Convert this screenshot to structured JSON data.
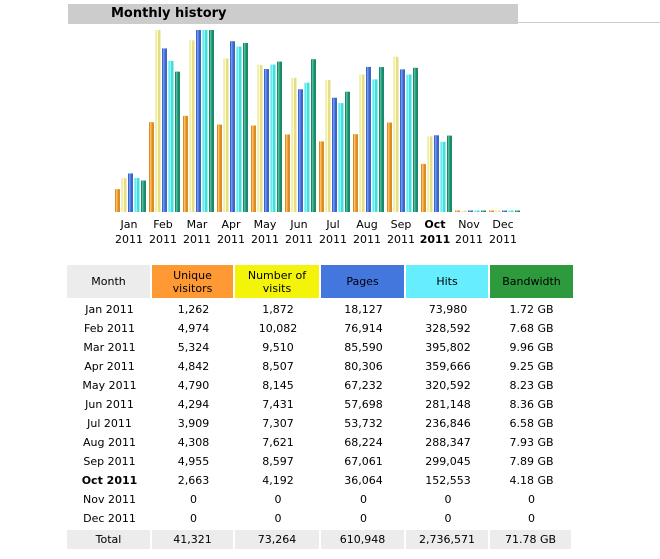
{
  "title": "Monthly history",
  "colors": {
    "unique": "#d98c28",
    "visits": "#e6dc8c",
    "pages": "#3b66c8",
    "hits": "#4cd9d9",
    "bandwidth": "#1a8a6a"
  },
  "chart_data": {
    "type": "bar",
    "categories": [
      "Jan",
      "Feb",
      "Mar",
      "Apr",
      "May",
      "Jun",
      "Jul",
      "Aug",
      "Sep",
      "Oct",
      "Nov",
      "Dec"
    ],
    "years": [
      "2011",
      "2011",
      "2011",
      "2011",
      "2011",
      "2011",
      "2011",
      "2011",
      "2011",
      "2011",
      "2011",
      "2011"
    ],
    "highlight": "Oct",
    "series": [
      {
        "name": "Unique visitors",
        "values": [
          1262,
          4974,
          5324,
          4842,
          4790,
          4294,
          3909,
          4308,
          4955,
          2663,
          0,
          0
        ]
      },
      {
        "name": "Number of visits",
        "values": [
          1872,
          10082,
          9510,
          8507,
          8145,
          7431,
          7307,
          7621,
          8597,
          4192,
          0,
          0
        ]
      },
      {
        "name": "Pages",
        "values": [
          18127,
          76914,
          85590,
          80306,
          67232,
          57698,
          53732,
          68224,
          67061,
          36064,
          0,
          0
        ]
      },
      {
        "name": "Hits",
        "values": [
          73980,
          328592,
          395802,
          359666,
          320592,
          281148,
          236846,
          288347,
          299045,
          152553,
          0,
          0
        ]
      },
      {
        "name": "Bandwidth",
        "values": [
          1.72,
          7.68,
          9.96,
          9.25,
          8.23,
          8.36,
          6.58,
          7.93,
          7.89,
          4.18,
          0,
          0
        ],
        "unit": "GB"
      }
    ]
  },
  "table": {
    "headers": {
      "month": "Month",
      "unique": "Unique visitors",
      "visits": "Number of visits",
      "pages": "Pages",
      "hits": "Hits",
      "bandwidth": "Bandwidth"
    },
    "rows": [
      {
        "month": "Jan 2011",
        "unique": "1,262",
        "visits": "1,872",
        "pages": "18,127",
        "hits": "73,980",
        "bandwidth": "1.72 GB"
      },
      {
        "month": "Feb 2011",
        "unique": "4,974",
        "visits": "10,082",
        "pages": "76,914",
        "hits": "328,592",
        "bandwidth": "7.68 GB"
      },
      {
        "month": "Mar 2011",
        "unique": "5,324",
        "visits": "9,510",
        "pages": "85,590",
        "hits": "395,802",
        "bandwidth": "9.96 GB"
      },
      {
        "month": "Apr 2011",
        "unique": "4,842",
        "visits": "8,507",
        "pages": "80,306",
        "hits": "359,666",
        "bandwidth": "9.25 GB"
      },
      {
        "month": "May 2011",
        "unique": "4,790",
        "visits": "8,145",
        "pages": "67,232",
        "hits": "320,592",
        "bandwidth": "8.23 GB"
      },
      {
        "month": "Jun 2011",
        "unique": "4,294",
        "visits": "7,431",
        "pages": "57,698",
        "hits": "281,148",
        "bandwidth": "8.36 GB"
      },
      {
        "month": "Jul 2011",
        "unique": "3,909",
        "visits": "7,307",
        "pages": "53,732",
        "hits": "236,846",
        "bandwidth": "6.58 GB"
      },
      {
        "month": "Aug 2011",
        "unique": "4,308",
        "visits": "7,621",
        "pages": "68,224",
        "hits": "288,347",
        "bandwidth": "7.93 GB"
      },
      {
        "month": "Sep 2011",
        "unique": "4,955",
        "visits": "8,597",
        "pages": "67,061",
        "hits": "299,045",
        "bandwidth": "7.89 GB"
      },
      {
        "month": "Oct 2011",
        "unique": "2,663",
        "visits": "4,192",
        "pages": "36,064",
        "hits": "152,553",
        "bandwidth": "4.18 GB",
        "bold": true
      },
      {
        "month": "Nov 2011",
        "unique": "0",
        "visits": "0",
        "pages": "0",
        "hits": "0",
        "bandwidth": "0"
      },
      {
        "month": "Dec 2011",
        "unique": "0",
        "visits": "0",
        "pages": "0",
        "hits": "0",
        "bandwidth": "0"
      }
    ],
    "total": {
      "month": "Total",
      "unique": "41,321",
      "visits": "73,264",
      "pages": "610,948",
      "hits": "2,736,571",
      "bandwidth": "71.78 GB"
    }
  }
}
